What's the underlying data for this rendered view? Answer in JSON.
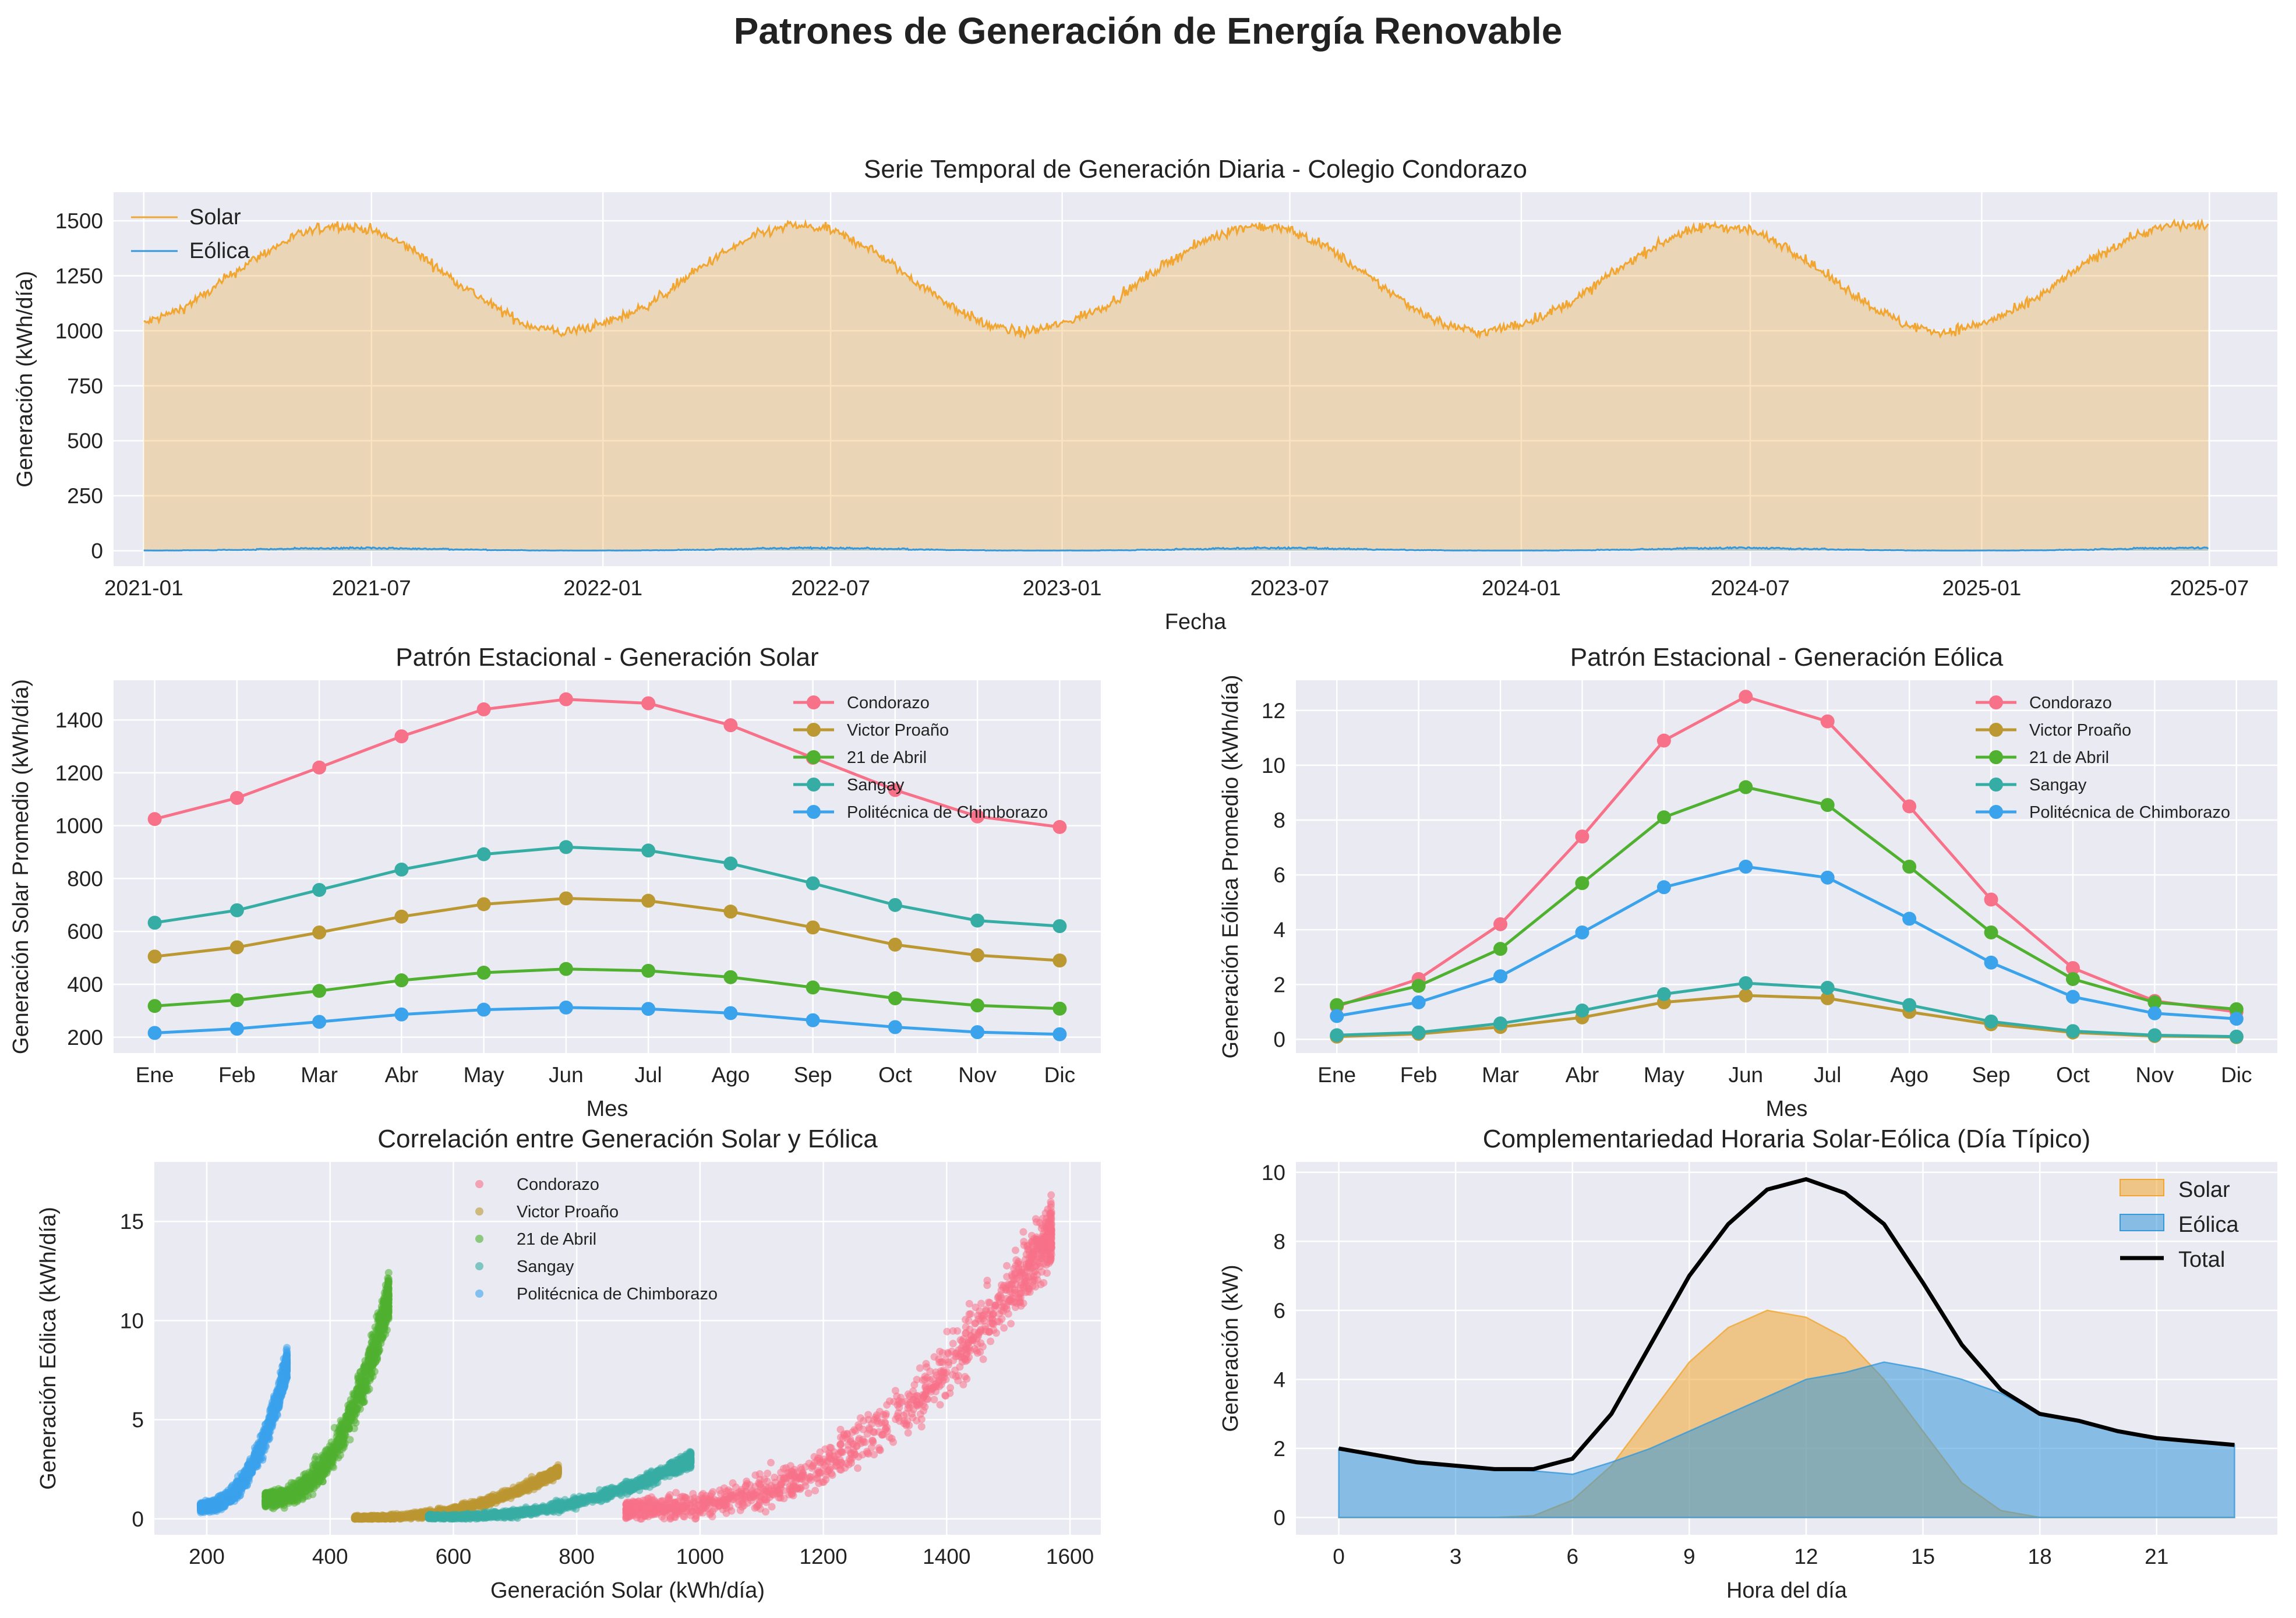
{
  "figure": {
    "suptitle": "Patrones de Generación de Energía Renovable"
  },
  "colors": {
    "solar": "#f0a630",
    "eolica": "#3598db",
    "total": "#000000",
    "plot_background": "#eaeaf2",
    "grid": "#ffffff",
    "schools": [
      "#f77189",
      "#bb9832",
      "#50b131",
      "#36ada4",
      "#3ba3ec"
    ]
  },
  "chart_data": [
    {
      "id": "timeseries",
      "type": "area",
      "title": "Serie Temporal de Generación Diaria - Colegio Condorazo",
      "xlabel": "Fecha",
      "ylabel": "Generación (kWh/día)",
      "x_start": "2021-01-01",
      "x_end": "2025-06-30",
      "x_ticks": [
        "2021-01",
        "2021-07",
        "2022-01",
        "2022-07",
        "2023-01",
        "2023-07",
        "2024-01",
        "2024-07",
        "2025-01",
        "2025-07"
      ],
      "y_ticks": [
        0,
        250,
        500,
        750,
        1000,
        1250,
        1500
      ],
      "ylim": [
        -70,
        1630
      ],
      "grid": true,
      "legend_position": "upper-left",
      "series": [
        {
          "name": "Solar",
          "color": "#f0a630",
          "monthly_mean": {
            "months": [
              "2021-01",
              "2021-02",
              "2021-03",
              "2021-04",
              "2021-05",
              "2021-06",
              "2021-07",
              "2021-08",
              "2021-09",
              "2021-10",
              "2021-11",
              "2021-12",
              "2022-01",
              "2022-02",
              "2022-03",
              "2022-04",
              "2022-05",
              "2022-06",
              "2022-07",
              "2022-08",
              "2022-09",
              "2022-10",
              "2022-11",
              "2022-12",
              "2023-01",
              "2023-02",
              "2023-03",
              "2023-04",
              "2023-05",
              "2023-06",
              "2023-07",
              "2023-08",
              "2023-09",
              "2023-10",
              "2023-11",
              "2023-12",
              "2024-01",
              "2024-02",
              "2024-03",
              "2024-04",
              "2024-05",
              "2024-06",
              "2024-07",
              "2024-08",
              "2024-09",
              "2024-10",
              "2024-11",
              "2024-12",
              "2025-01",
              "2025-02",
              "2025-03",
              "2025-04",
              "2025-05",
              "2025-06"
            ],
            "values": [
              1030,
              1100,
              1210,
              1330,
              1430,
              1480,
              1460,
              1380,
              1250,
              1130,
              1030,
              990,
              1030,
              1100,
              1210,
              1330,
              1430,
              1480,
              1460,
              1380,
              1250,
              1130,
              1030,
              990,
              1030,
              1100,
              1210,
              1330,
              1430,
              1480,
              1460,
              1380,
              1250,
              1130,
              1030,
              990,
              1030,
              1100,
              1210,
              1330,
              1430,
              1480,
              1460,
              1380,
              1250,
              1130,
              1030,
              990,
              1030,
              1100,
              1210,
              1330,
              1430,
              1480
            ]
          },
          "daily_noise_amplitude": 40
        },
        {
          "name": "Eólica",
          "color": "#3598db",
          "monthly_mean": {
            "months_of_year": [
              "Ene",
              "Feb",
              "Mar",
              "Abr",
              "May",
              "Jun",
              "Jul",
              "Ago",
              "Sep",
              "Oct",
              "Nov",
              "Dic"
            ],
            "values": [
              1.2,
              2.1,
              4.1,
              7.3,
              10.9,
              12.5,
              11.6,
              8.5,
              5.1,
              2.6,
              1.3,
              1.0
            ]
          }
        }
      ]
    },
    {
      "id": "seasonal_solar",
      "type": "line",
      "title": "Patrón Estacional - Generación Solar",
      "xlabel": "Mes",
      "ylabel": "Generación Solar Promedio (kWh/día)",
      "categories": [
        "Ene",
        "Feb",
        "Mar",
        "Abr",
        "May",
        "Jun",
        "Jul",
        "Ago",
        "Sep",
        "Oct",
        "Nov",
        "Dic"
      ],
      "y_ticks": [
        200,
        400,
        600,
        800,
        1000,
        1200,
        1400
      ],
      "ylim": [
        140,
        1550
      ],
      "grid": true,
      "legend_position": "upper-right",
      "series": [
        {
          "name": "Condorazo",
          "color": "#f77189",
          "values": [
            1025,
            1105,
            1220,
            1338,
            1440,
            1478,
            1463,
            1380,
            1257,
            1135,
            1035,
            995
          ]
        },
        {
          "name": "Victor Proaño",
          "color": "#bb9832",
          "values": [
            505,
            540,
            596,
            656,
            703,
            725,
            716,
            675,
            615,
            550,
            510,
            490
          ]
        },
        {
          "name": "21 de Abril",
          "color": "#50b131",
          "values": [
            318,
            340,
            375,
            415,
            444,
            458,
            451,
            427,
            388,
            347,
            320,
            308
          ]
        },
        {
          "name": "Sangay",
          "color": "#36ada4",
          "values": [
            633,
            680,
            757,
            834,
            892,
            919,
            906,
            857,
            782,
            700,
            641,
            620
          ]
        },
        {
          "name": "Politécnica de Chimborazo",
          "color": "#3ba3ec",
          "values": [
            216,
            232,
            258,
            286,
            304,
            312,
            307,
            291,
            264,
            238,
            219,
            211
          ]
        }
      ]
    },
    {
      "id": "seasonal_wind",
      "type": "line",
      "title": "Patrón Estacional - Generación Eólica",
      "xlabel": "Mes",
      "ylabel": "Generación Eólica Promedio (kWh/día)",
      "categories": [
        "Ene",
        "Feb",
        "Mar",
        "Abr",
        "May",
        "Jun",
        "Jul",
        "Ago",
        "Sep",
        "Oct",
        "Nov",
        "Dic"
      ],
      "y_ticks": [
        0,
        2,
        4,
        6,
        8,
        10,
        12
      ],
      "ylim": [
        -0.5,
        13.1
      ],
      "grid": true,
      "legend_position": "upper-right",
      "series": [
        {
          "name": "Condorazo",
          "color": "#f77189",
          "values": [
            1.2,
            2.2,
            4.2,
            7.4,
            10.9,
            12.5,
            11.6,
            8.5,
            5.1,
            2.6,
            1.4,
            1.0
          ]
        },
        {
          "name": "Victor Proaño",
          "color": "#bb9832",
          "values": [
            0.1,
            0.2,
            0.45,
            0.8,
            1.35,
            1.6,
            1.5,
            1.0,
            0.55,
            0.25,
            0.12,
            0.08
          ]
        },
        {
          "name": "21 de Abril",
          "color": "#50b131",
          "values": [
            1.25,
            1.95,
            3.3,
            5.7,
            8.1,
            9.2,
            8.55,
            6.3,
            3.9,
            2.2,
            1.35,
            1.1
          ]
        },
        {
          "name": "Sangay",
          "color": "#36ada4",
          "values": [
            0.15,
            0.25,
            0.58,
            1.05,
            1.65,
            2.05,
            1.88,
            1.25,
            0.65,
            0.3,
            0.15,
            0.1
          ]
        },
        {
          "name": "Politécnica de Chimborazo",
          "color": "#3ba3ec",
          "values": [
            0.85,
            1.35,
            2.3,
            3.9,
            5.55,
            6.3,
            5.9,
            4.4,
            2.8,
            1.55,
            0.95,
            0.75
          ]
        }
      ]
    },
    {
      "id": "correlation",
      "type": "scatter",
      "title": "Correlación entre Generación Solar y Eólica",
      "xlabel": "Generación Solar (kWh/día)",
      "ylabel": "Generación Eólica (kWh/día)",
      "x_ticks": [
        200,
        400,
        600,
        800,
        1000,
        1200,
        1400,
        1600
      ],
      "y_ticks": [
        0,
        5,
        10,
        15
      ],
      "xlim": [
        115,
        1650
      ],
      "ylim": [
        -0.8,
        18
      ],
      "grid": true,
      "legend_position": "upper-center",
      "series": [
        {
          "name": "Condorazo",
          "color": "#f77189",
          "points_per_series": 1300,
          "x_range": [
            880,
            1570
          ],
          "y_at_x_min": 0.5,
          "y_at_x_max": 14.5,
          "curve_exponent": 2.4,
          "y_spread": 2.0
        },
        {
          "name": "Victor Proaño",
          "color": "#bb9832",
          "points_per_series": 1300,
          "x_range": [
            440,
            770
          ],
          "y_at_x_min": 0.05,
          "y_at_x_max": 2.4,
          "curve_exponent": 2.4,
          "y_spread": 0.35
        },
        {
          "name": "21 de Abril",
          "color": "#50b131",
          "points_per_series": 1300,
          "x_range": [
            295,
            495
          ],
          "y_at_x_min": 1.0,
          "y_at_x_max": 11.2,
          "curve_exponent": 2.4,
          "y_spread": 1.4
        },
        {
          "name": "Sangay",
          "color": "#36ada4",
          "points_per_series": 1300,
          "x_range": [
            560,
            985
          ],
          "y_at_x_min": 0.1,
          "y_at_x_max": 3.0,
          "curve_exponent": 2.4,
          "y_spread": 0.45
        },
        {
          "name": "Politécnica de Chimborazo",
          "color": "#3ba3ec",
          "points_per_series": 1300,
          "x_range": [
            190,
            330
          ],
          "y_at_x_min": 0.6,
          "y_at_x_max": 7.8,
          "curve_exponent": 2.4,
          "y_spread": 0.9
        }
      ]
    },
    {
      "id": "hourly",
      "type": "area",
      "title": "Complementariedad Horaria Solar-Eólica (Día Típico)",
      "xlabel": "Hora del día",
      "ylabel": "Generación (kW)",
      "x_ticks": [
        0,
        3,
        6,
        9,
        12,
        15,
        18,
        21
      ],
      "y_ticks": [
        0,
        2,
        4,
        6,
        8,
        10
      ],
      "xlim": [
        -1.1,
        24.1
      ],
      "ylim": [
        -0.5,
        10.3
      ],
      "grid": true,
      "legend_position": "upper-right",
      "hours": [
        0,
        1,
        2,
        3,
        4,
        5,
        6,
        7,
        8,
        9,
        10,
        11,
        12,
        13,
        14,
        15,
        16,
        17,
        18,
        19,
        20,
        21,
        22,
        23
      ],
      "series": [
        {
          "name": "Solar",
          "color": "#f0a630",
          "values": [
            0,
            0,
            0,
            0,
            0,
            0.05,
            0.5,
            1.5,
            3.0,
            4.5,
            5.5,
            6.0,
            5.8,
            5.2,
            4.0,
            2.5,
            1.0,
            0.2,
            0,
            0,
            0,
            0,
            0,
            0
          ]
        },
        {
          "name": "Eólica",
          "color": "#3598db",
          "values": [
            2.0,
            1.8,
            1.6,
            1.5,
            1.4,
            1.35,
            1.25,
            1.6,
            2.0,
            2.5,
            3.0,
            3.5,
            4.0,
            4.2,
            4.5,
            4.3,
            4.0,
            3.6,
            3.0,
            2.8,
            2.5,
            2.3,
            2.2,
            2.1
          ]
        },
        {
          "name": "Total",
          "color": "#000000",
          "values": [
            2.0,
            1.8,
            1.6,
            1.5,
            1.4,
            1.4,
            1.7,
            3.0,
            5.0,
            7.0,
            8.5,
            9.5,
            9.8,
            9.4,
            8.5,
            6.8,
            5.0,
            3.7,
            3.0,
            2.8,
            2.5,
            2.3,
            2.2,
            2.1
          ]
        }
      ]
    }
  ]
}
